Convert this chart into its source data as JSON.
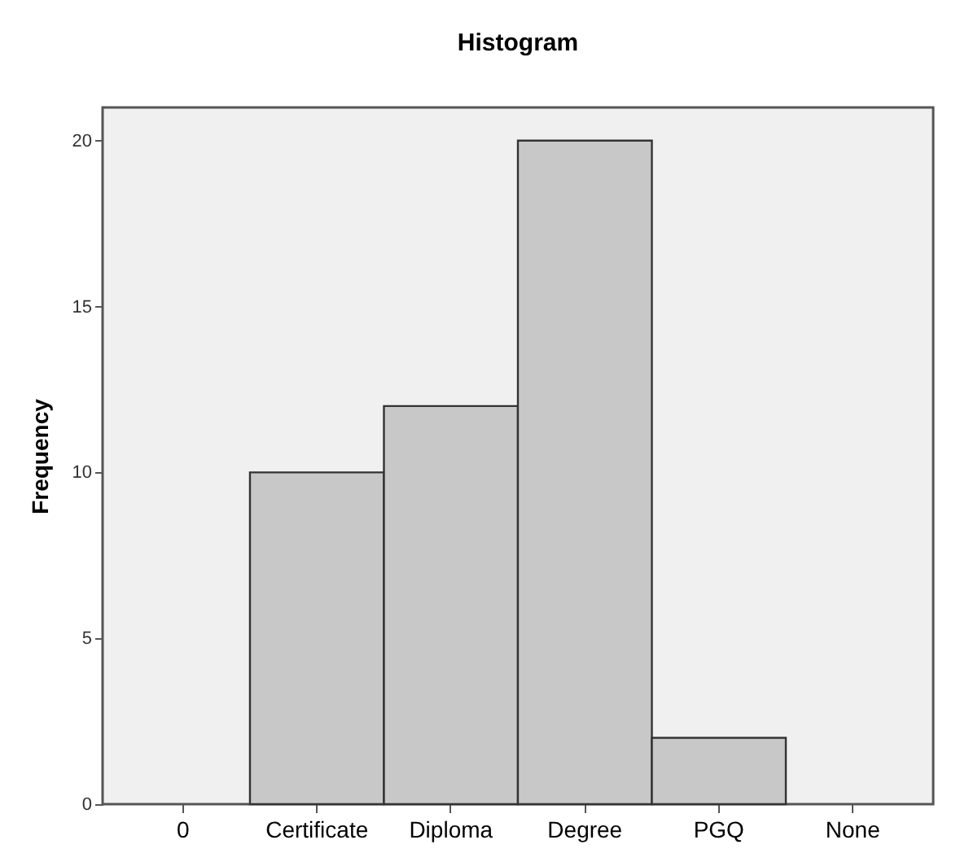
{
  "chart_data": {
    "type": "bar",
    "title": "Histogram",
    "ylabel": "Frequency",
    "categories": [
      "0",
      "Certificate",
      "Diploma",
      "Degree",
      "PGQ",
      "None"
    ],
    "values": [
      null,
      10,
      12,
      20,
      2,
      null
    ],
    "color": "#c8c8c8",
    "ylim": [
      0,
      21
    ],
    "yticks": [
      0,
      5,
      10,
      15,
      20
    ],
    "grid": false
  }
}
